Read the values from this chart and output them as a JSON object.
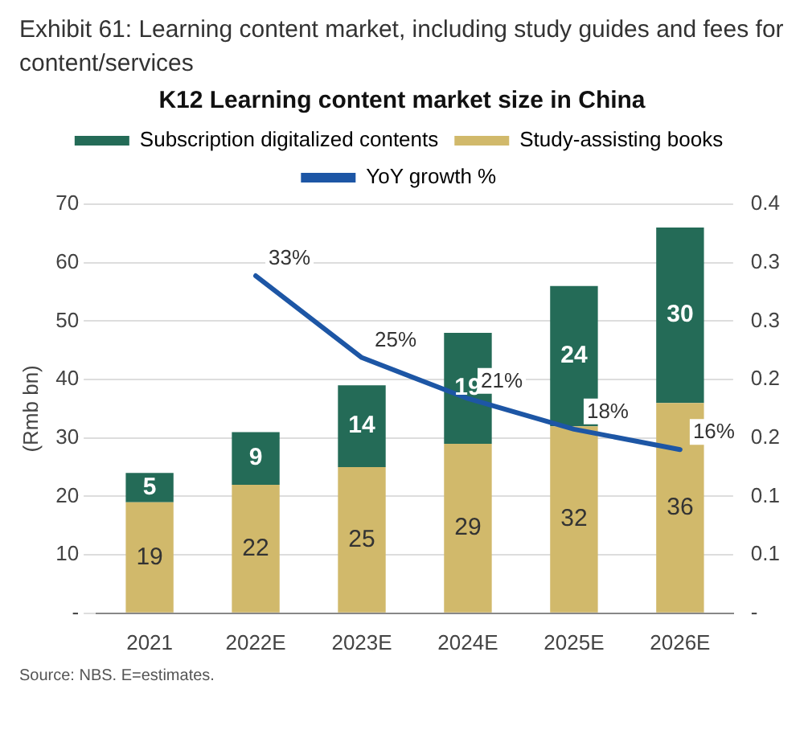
{
  "chart_data": {
    "type": "bar",
    "title": "Exhibit 61:  Learning content market, including study guides and fees for content/services",
    "subtitle": "K12 Learning content market size in China",
    "ylabel": "(Rmb bn)",
    "categories": [
      "2021",
      "2022E",
      "2023E",
      "2024E",
      "2025E",
      "2026E"
    ],
    "stacked": true,
    "legend": "top",
    "grid": "y",
    "series": [
      {
        "name": "Subscription digitalized contents",
        "color": "#246b57",
        "values": [
          5,
          9,
          14,
          19,
          24,
          30
        ],
        "value_labels": [
          "5",
          "9",
          "14",
          "19",
          "24",
          "30"
        ]
      },
      {
        "name": "Study-assisting books",
        "color": "#d1b96b",
        "values": [
          19,
          22,
          25,
          29,
          32,
          36
        ],
        "value_labels": [
          "19",
          "22",
          "25",
          "29",
          "32",
          "36"
        ]
      },
      {
        "name": "YoY growth %",
        "type": "line",
        "axis": "y2",
        "color": "#1d56a5",
        "marker": "none",
        "values": [
          null,
          0.33,
          0.25,
          0.21,
          0.18,
          0.16
        ],
        "value_labels": [
          null,
          "33%",
          "25%",
          "21%",
          "18%",
          "16%"
        ]
      }
    ],
    "ylim": [
      0,
      70
    ],
    "yticks": [
      {
        "value": 0,
        "label": "-"
      },
      10,
      20,
      30,
      40,
      50,
      60,
      70
    ],
    "y2lim": [
      0,
      0.4
    ],
    "y2ticks": [
      {
        "value": 0,
        "label": "-"
      },
      {
        "value": 0.0571,
        "label": "0.1"
      },
      {
        "value": 0.1143,
        "label": "0.1"
      },
      {
        "value": 0.1714,
        "label": "0.2"
      },
      {
        "value": 0.2286,
        "label": "0.2"
      },
      {
        "value": 0.2857,
        "label": "0.3"
      },
      {
        "value": 0.3429,
        "label": "0.3"
      },
      0.4
    ],
    "annotations": [
      "Source: NBS. E=estimates."
    ]
  }
}
